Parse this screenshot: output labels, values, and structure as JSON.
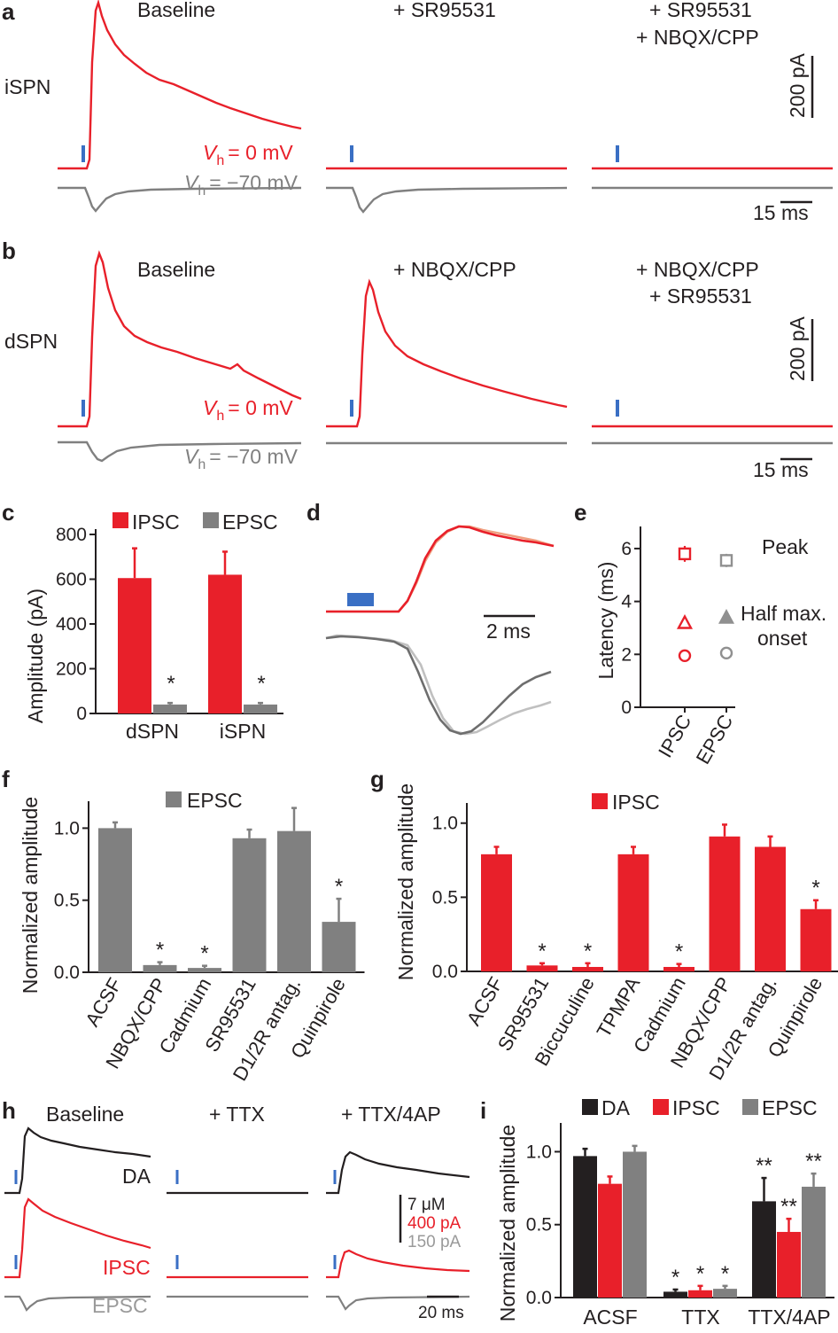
{
  "colors": {
    "red": "#e8202a",
    "gray": "#808080",
    "black": "#231f20",
    "blue": "#3a6fc4",
    "axis": "#231f20"
  },
  "panel_a": {
    "label": "a",
    "cell": "iSPN",
    "conditions": [
      "Baseline",
      "+ SR95531",
      "+ SR95531",
      "+ NBQX/CPP"
    ],
    "vh_red": "= 0 mV",
    "vh_gray": "= −70 mV",
    "vh_symbol": "V",
    "vh_sub": "h",
    "scale_y": "200 pA",
    "scale_x": "15 ms"
  },
  "panel_b": {
    "label": "b",
    "cell": "dSPN",
    "conditions": [
      "Baseline",
      "+ NBQX/CPP",
      "+ NBQX/CPP",
      "+ SR95531"
    ],
    "vh_red": "= 0 mV",
    "vh_gray": "= −70 mV",
    "vh_symbol": "V",
    "vh_sub": "h",
    "scale_y": "200 pA",
    "scale_x": "15 ms"
  },
  "panel_d": {
    "label": "d",
    "scale_x": "2 ms"
  },
  "panel_h": {
    "label": "h",
    "conditions": [
      "Baseline",
      "+ TTX",
      "+ TTX/4AP"
    ],
    "trace_labels": [
      "DA",
      "IPSC",
      "EPSC"
    ],
    "scale_labels": [
      "7 μM",
      "400 pA",
      "150 pA"
    ],
    "scale_x": "20 ms"
  },
  "chart_data": [
    {
      "id": "c",
      "label": "c",
      "type": "bar",
      "categories": [
        "dSPN",
        "iSPN"
      ],
      "series": [
        {
          "name": "IPSC",
          "values": [
            605,
            620
          ],
          "errors": [
            133,
            103
          ]
        },
        {
          "name": "EPSC",
          "values": [
            40,
            40
          ],
          "errors": [
            7,
            7
          ]
        }
      ],
      "significance": [
        "*",
        "*"
      ],
      "xlabel": "",
      "ylabel": "Amplitude (pA)",
      "ylim": [
        0,
        800
      ],
      "yticks": [
        0,
        200,
        400,
        600,
        800
      ],
      "legend": "top"
    },
    {
      "id": "e",
      "label": "e",
      "type": "scatter",
      "categories": [
        "IPSC",
        "EPSC"
      ],
      "series": [
        {
          "name": "Peak",
          "values": [
            5.8,
            5.55
          ],
          "errors": [
            0.3,
            0.25
          ]
        },
        {
          "name": "Half max.",
          "values": [
            3.2,
            3.4
          ]
        },
        {
          "name": "onset",
          "values": [
            1.95,
            2.05
          ]
        }
      ],
      "ylabel": "Latency (ms)",
      "ylim": [
        0,
        6.5
      ],
      "yticks": [
        0,
        2,
        4,
        6
      ],
      "legend_labels": [
        "Peak",
        "Half max.",
        "onset"
      ]
    },
    {
      "id": "f",
      "label": "f",
      "type": "bar",
      "legend_label": "EPSC",
      "categories": [
        "ACSF",
        "NBQX/CPP",
        "Cadmium",
        "SR95531",
        "D1/2R antag.",
        "Quinpirole"
      ],
      "values": [
        1.0,
        0.05,
        0.03,
        0.93,
        0.98,
        0.35
      ],
      "errors": [
        0.04,
        0.02,
        0.015,
        0.06,
        0.16,
        0.16
      ],
      "significance": [
        "",
        "*",
        "*",
        "",
        "",
        "*"
      ],
      "ylabel": "Normalized amplitude",
      "ylim": [
        0,
        1.15
      ],
      "yticks": [
        "0.0",
        "0.5",
        "1.0"
      ]
    },
    {
      "id": "g",
      "label": "g",
      "type": "bar",
      "legend_label": "IPSC",
      "categories": [
        "ACSF",
        "SR95531",
        "Biccuculine",
        "TPMPA",
        "Cadmium",
        "NBQX/CPP",
        "D1/2R antag.",
        "Quinpirole"
      ],
      "values": [
        0.79,
        0.04,
        0.03,
        0.79,
        0.03,
        0.91,
        0.84,
        0.42
      ],
      "errors": [
        0.05,
        0.015,
        0.025,
        0.05,
        0.02,
        0.08,
        0.07,
        0.06
      ],
      "significance": [
        "",
        "*",
        "*",
        "",
        "*",
        "",
        "",
        "*"
      ],
      "ylabel": "Normalized amplitude",
      "ylim": [
        0,
        1.1
      ],
      "yticks": [
        "0.0",
        "0.5",
        "1.0"
      ]
    },
    {
      "id": "i",
      "label": "i",
      "type": "bar",
      "categories": [
        "ACSF",
        "TTX",
        "TTX/4AP"
      ],
      "series": [
        {
          "name": "DA",
          "values": [
            0.97,
            0.04,
            0.66
          ],
          "errors": [
            0.05,
            0.015,
            0.16
          ]
        },
        {
          "name": "IPSC",
          "values": [
            0.78,
            0.05,
            0.45
          ],
          "errors": [
            0.05,
            0.03,
            0.09
          ]
        },
        {
          "name": "EPSC",
          "values": [
            1.0,
            0.06,
            0.76
          ],
          "errors": [
            0.04,
            0.02,
            0.09
          ]
        }
      ],
      "significance": [
        [
          "",
          "",
          ""
        ],
        [
          "*",
          "*",
          "*"
        ],
        [
          "**",
          "**",
          "**"
        ]
      ],
      "ylabel": "Normalized amplitude",
      "ylim": [
        0,
        1.1
      ],
      "yticks": [
        "0.0",
        "0.5",
        "1.0"
      ],
      "legend": "top"
    }
  ]
}
